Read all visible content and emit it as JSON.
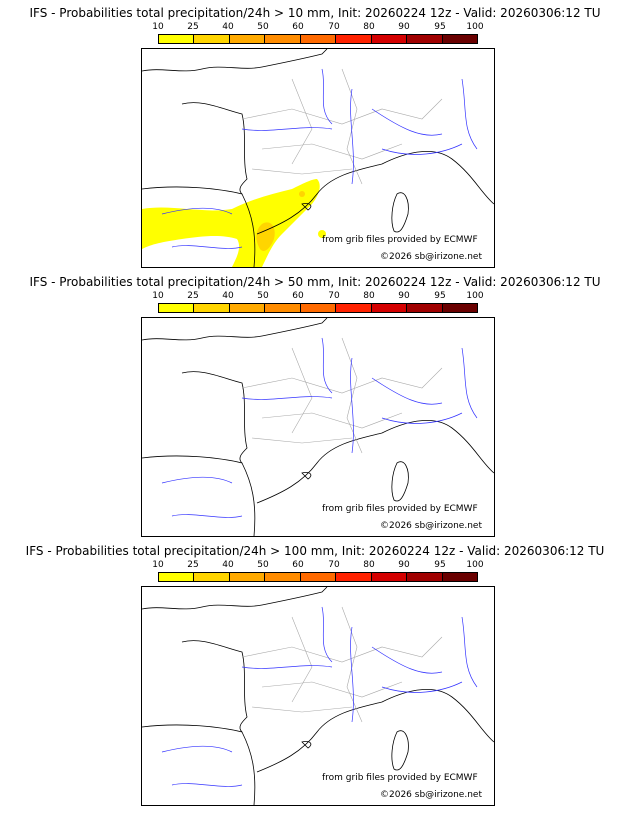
{
  "colorbar": {
    "ticks": [
      "10",
      "25",
      "40",
      "50",
      "60",
      "70",
      "80",
      "90",
      "95",
      "100"
    ],
    "colors": [
      "#ffff00",
      "#ffd500",
      "#ffaa00",
      "#ff8c00",
      "#ff6a00",
      "#ff2200",
      "#d40000",
      "#a00000",
      "#6a0000"
    ]
  },
  "panels": [
    {
      "title": "IFS - Probabilities total precipitation/24h > 10 mm, Init: 20260224 12z - Valid: 20260306:12 TU",
      "has_precip": true
    },
    {
      "title": "IFS - Probabilities total precipitation/24h > 50 mm, Init: 20260224 12z - Valid: 20260306:12 TU",
      "has_precip": false
    },
    {
      "title": "IFS - Probabilities total precipitation/24h > 100 mm, Init: 20260224 12z - Valid: 20260306:12 TU",
      "has_precip": false
    }
  ],
  "credits": {
    "source": "from grib files provided by ECMWF",
    "copyright": "©2026 sb@irizone.net"
  }
}
